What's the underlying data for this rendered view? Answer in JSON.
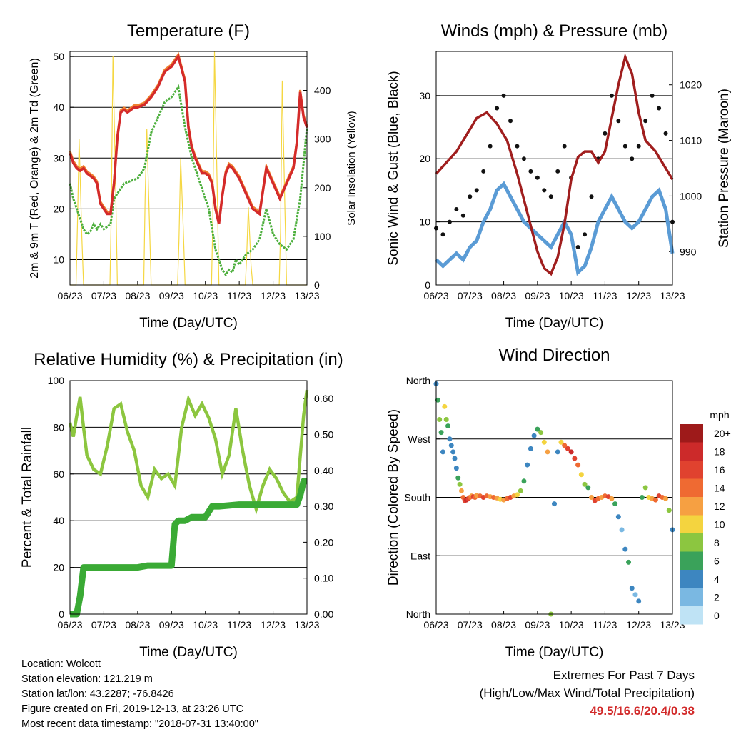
{
  "info": {
    "location": "Location: Wolcott",
    "elevation": "Station elevation: 121.219 m",
    "latlon": "Station lat/lon: 43.2287; -76.8426",
    "created": "Figure created on Fri, 2019-12-13, at 23:26 UTC",
    "recent": "Most recent data timestamp: \"2018-07-31 13:40:00\""
  },
  "extremes": {
    "title": "Extremes For Past 7 Days",
    "subtitle": "(High/Low/Max Wind/Total Precipitation)",
    "values": "49.5/16.6/20.4/0.38"
  },
  "chart_data": [
    {
      "type": "line",
      "title": "Temperature (F)",
      "xlabel": "Time (Day/UTC)",
      "ylabel": "2m & 9m T (Red, Orange) & 2m Td (Green)",
      "y2label": "Solar Insolation (Yellow)",
      "x_ticks": [
        "06/23",
        "07/23",
        "08/23",
        "09/23",
        "10/23",
        "11/23",
        "12/23",
        "13/23"
      ],
      "xlim": [
        0,
        7
      ],
      "ylim": [
        5,
        51
      ],
      "y_ticks": [
        10,
        20,
        30,
        40,
        50
      ],
      "y2lim": [
        0,
        480
      ],
      "y2_ticks": [
        0,
        100,
        200,
        300,
        400
      ],
      "grid": "horizontal",
      "colors": {
        "t2m": "#d42a2a",
        "t9m": "#f08030",
        "td": "#4caf3c",
        "solar": "#f5d742"
      },
      "series": [
        {
          "key": "t2m",
          "x": [
            0,
            0.1,
            0.2,
            0.3,
            0.4,
            0.5,
            0.6,
            0.7,
            0.8,
            0.9,
            1.0,
            1.1,
            1.2,
            1.3,
            1.4,
            1.5,
            1.6,
            1.7,
            1.8,
            1.9,
            2.0,
            2.2,
            2.4,
            2.6,
            2.8,
            3.0,
            3.2,
            3.4,
            3.5,
            3.6,
            3.7,
            3.8,
            3.9,
            4.0,
            4.1,
            4.2,
            4.3,
            4.4,
            4.5,
            4.6,
            4.7,
            4.8,
            4.9,
            5.0,
            5.2,
            5.4,
            5.6,
            5.8,
            6.0,
            6.2,
            6.4,
            6.6,
            6.7,
            6.8,
            6.9,
            7.0
          ],
          "y": [
            31,
            29,
            28,
            27.5,
            28,
            27,
            26.5,
            26,
            25,
            21,
            20,
            19,
            19,
            25,
            34,
            39,
            39.5,
            39,
            39.5,
            40,
            40,
            40.5,
            42,
            44,
            47,
            48,
            50,
            45,
            36,
            32,
            30,
            28.5,
            27,
            27,
            26.5,
            25,
            20,
            17,
            22.5,
            27,
            28.5,
            28,
            27,
            26,
            23,
            20,
            19,
            28,
            25,
            22,
            25,
            28,
            33,
            43,
            38,
            36
          ]
        },
        {
          "key": "td",
          "x": [
            0,
            0.1,
            0.2,
            0.3,
            0.4,
            0.5,
            0.6,
            0.7,
            0.8,
            0.9,
            1.0,
            1.1,
            1.2,
            1.3,
            1.4,
            1.5,
            1.6,
            1.8,
            2.0,
            2.2,
            2.4,
            2.6,
            2.8,
            3.0,
            3.2,
            3.4,
            3.6,
            3.8,
            4.0,
            4.1,
            4.2,
            4.3,
            4.4,
            4.5,
            4.6,
            4.7,
            4.8,
            4.9,
            5.0,
            5.2,
            5.4,
            5.6,
            5.8,
            6.0,
            6.2,
            6.4,
            6.6,
            6.8,
            7.0
          ],
          "y": [
            25,
            22,
            20,
            18,
            16,
            15,
            15.5,
            17,
            16,
            17,
            16,
            16.5,
            17,
            22,
            23,
            24,
            25,
            25.5,
            26,
            28,
            35,
            38,
            41,
            42,
            44,
            36,
            30,
            26,
            22,
            20,
            16,
            12,
            10,
            8,
            7,
            8,
            7.5,
            10,
            9,
            11,
            12,
            14,
            20,
            15,
            13,
            12,
            14,
            22,
            36
          ]
        },
        {
          "key": "solar",
          "x": [
            0,
            0.18,
            0.22,
            0.27,
            0.35,
            0.4,
            1.18,
            1.22,
            1.27,
            1.35,
            1.4,
            2.18,
            2.22,
            2.27,
            2.35,
            2.4,
            3.18,
            3.22,
            3.27,
            3.35,
            3.4,
            4.18,
            4.22,
            4.27,
            4.35,
            4.4,
            5.18,
            5.22,
            5.27,
            5.35,
            5.4,
            6.18,
            6.22,
            6.27,
            6.35,
            6.4,
            7.0
          ],
          "y": [
            0,
            0,
            120,
            300,
            100,
            0,
            0,
            150,
            470,
            200,
            0,
            0,
            180,
            320,
            120,
            0,
            0,
            90,
            260,
            110,
            0,
            0,
            130,
            480,
            200,
            0,
            0,
            60,
            160,
            40,
            0,
            0,
            110,
            420,
            150,
            0,
            0
          ]
        }
      ]
    },
    {
      "type": "line",
      "title": "Winds (mph) & Pressure (mb)",
      "xlabel": "Time (Day/UTC)",
      "ylabel": "Sonic Wind & Gust (Blue, Black)",
      "y2label": "Station Pressure (Maroon)",
      "x_ticks": [
        "06/23",
        "07/23",
        "08/23",
        "09/23",
        "10/23",
        "11/23",
        "12/23",
        "13/23"
      ],
      "xlim": [
        0,
        7
      ],
      "ylim": [
        0,
        37
      ],
      "y_ticks": [
        0,
        10,
        20,
        30
      ],
      "y2lim": [
        984,
        1026
      ],
      "y2_ticks": [
        990,
        1000,
        1010,
        1020
      ],
      "grid": "horizontal",
      "colors": {
        "wind": "#5a9bd5",
        "gust": "#111111",
        "pressure": "#a01e1e"
      },
      "series": [
        {
          "key": "wind",
          "x": [
            0,
            0.2,
            0.4,
            0.6,
            0.8,
            1.0,
            1.2,
            1.4,
            1.6,
            1.8,
            2.0,
            2.2,
            2.4,
            2.6,
            2.8,
            3.0,
            3.2,
            3.4,
            3.6,
            3.8,
            4.0,
            4.2,
            4.4,
            4.6,
            4.8,
            5.0,
            5.2,
            5.4,
            5.6,
            5.8,
            6.0,
            6.2,
            6.4,
            6.6,
            6.8,
            7.0
          ],
          "y": [
            4,
            3,
            4,
            5,
            4,
            6,
            7,
            10,
            12,
            15,
            16,
            14,
            12,
            10,
            9,
            8,
            7,
            6,
            8,
            10,
            8,
            2,
            3,
            6,
            10,
            12,
            14,
            12,
            10,
            9,
            10,
            12,
            14,
            15,
            12,
            5
          ]
        },
        {
          "key": "gust",
          "x": [
            0,
            0.2,
            0.4,
            0.6,
            0.8,
            1.0,
            1.2,
            1.4,
            1.6,
            1.8,
            2.0,
            2.2,
            2.4,
            2.6,
            2.8,
            3.0,
            3.2,
            3.4,
            3.6,
            3.8,
            4.0,
            4.2,
            4.4,
            4.6,
            4.8,
            5.0,
            5.2,
            5.4,
            5.6,
            5.8,
            6.0,
            6.2,
            6.4,
            6.6,
            6.8,
            7.0
          ],
          "y": [
            9,
            8,
            10,
            12,
            11,
            14,
            15,
            18,
            22,
            28,
            30,
            26,
            22,
            20,
            18,
            17,
            15,
            14,
            18,
            22,
            17,
            6,
            8,
            14,
            20,
            24,
            30,
            26,
            22,
            20,
            22,
            26,
            30,
            28,
            24,
            10
          ]
        },
        {
          "key": "pressure",
          "x": [
            0,
            0.3,
            0.6,
            0.9,
            1.2,
            1.5,
            1.8,
            2.1,
            2.4,
            2.7,
            3.0,
            3.2,
            3.4,
            3.6,
            3.8,
            4.0,
            4.2,
            4.4,
            4.6,
            4.8,
            5.0,
            5.2,
            5.4,
            5.6,
            5.8,
            6.0,
            6.2,
            6.5,
            6.8,
            7.0
          ],
          "y": [
            1004,
            1006,
            1008,
            1011,
            1014,
            1015,
            1013,
            1010,
            1004,
            997,
            990,
            987,
            986,
            989,
            995,
            1003,
            1007,
            1008,
            1008,
            1006,
            1008,
            1014,
            1020,
            1025,
            1022,
            1015,
            1010,
            1008,
            1005,
            1003
          ]
        }
      ]
    },
    {
      "type": "line",
      "title": "Relative Humidity (%) & Precipitation (in)",
      "xlabel": "Time (Day/UTC)",
      "ylabel": "Percent & Total Rainfall",
      "x_ticks": [
        "06/23",
        "07/23",
        "08/23",
        "09/23",
        "10/23",
        "11/23",
        "12/23",
        "13/23"
      ],
      "xlim": [
        0,
        7
      ],
      "ylim": [
        0,
        100
      ],
      "y_ticks": [
        0,
        20,
        40,
        60,
        80,
        100
      ],
      "y2lim": [
        0,
        0.65
      ],
      "y2_ticks": [
        "0.00",
        "0.10",
        "0.20",
        "0.30",
        "0.40",
        "0.50",
        "0.60"
      ],
      "grid": "horizontal",
      "colors": {
        "rh": "#8cc63f",
        "precip": "#3aaa35"
      },
      "series": [
        {
          "key": "rh",
          "x": [
            0,
            0.1,
            0.2,
            0.3,
            0.4,
            0.5,
            0.7,
            0.9,
            1.1,
            1.3,
            1.5,
            1.7,
            1.9,
            2.1,
            2.3,
            2.5,
            2.7,
            2.9,
            3.1,
            3.3,
            3.5,
            3.7,
            3.9,
            4.1,
            4.3,
            4.5,
            4.7,
            4.9,
            5.1,
            5.3,
            5.5,
            5.7,
            5.9,
            6.1,
            6.3,
            6.5,
            6.7,
            6.9,
            7.0
          ],
          "y": [
            82,
            76,
            85,
            93,
            80,
            68,
            62,
            60,
            72,
            88,
            90,
            78,
            70,
            55,
            50,
            62,
            58,
            60,
            55,
            80,
            92,
            85,
            90,
            84,
            75,
            60,
            68,
            88,
            70,
            55,
            45,
            55,
            62,
            58,
            52,
            48,
            50,
            85,
            96
          ]
        },
        {
          "key": "precip",
          "x": [
            0,
            0.2,
            0.3,
            0.4,
            0.6,
            1.0,
            1.5,
            2.0,
            2.3,
            2.5,
            2.8,
            3.0,
            3.1,
            3.2,
            3.4,
            3.6,
            3.8,
            4.0,
            4.2,
            4.4,
            5.0,
            5.5,
            6.0,
            6.5,
            6.7,
            6.8,
            6.9,
            7.0
          ],
          "y": [
            0,
            0,
            0.05,
            0.13,
            0.13,
            0.13,
            0.13,
            0.13,
            0.135,
            0.135,
            0.135,
            0.135,
            0.25,
            0.26,
            0.26,
            0.27,
            0.27,
            0.27,
            0.3,
            0.3,
            0.305,
            0.305,
            0.305,
            0.305,
            0.305,
            0.33,
            0.37,
            0.37
          ]
        }
      ]
    },
    {
      "type": "scatter",
      "title": "Wind Direction",
      "xlabel": "Time (Day/UTC)",
      "ylabel": "Direction (Colored By Speed)",
      "x_ticks": [
        "06/23",
        "07/23",
        "08/23",
        "09/23",
        "10/23",
        "11/23",
        "12/23",
        "13/23"
      ],
      "xlim": [
        0,
        7
      ],
      "ylim": [
        0,
        360
      ],
      "y_ticks": [
        {
          "value": 0,
          "label": "North"
        },
        {
          "value": 90,
          "label": "East"
        },
        {
          "value": 180,
          "label": "South"
        },
        {
          "value": 270,
          "label": "West"
        },
        {
          "value": 360,
          "label": "North"
        }
      ],
      "grid": "horizontal",
      "legend": {
        "title": "mph",
        "labels": [
          "20+",
          "18",
          "16",
          "14",
          "12",
          "10",
          "8",
          "6",
          "4",
          "2",
          "0"
        ],
        "colors": [
          "#9e1a1a",
          "#cc2a2a",
          "#e0422f",
          "#ef6a32",
          "#f6a042",
          "#f4d43f",
          "#8cc640",
          "#3aa25a",
          "#3d86c0",
          "#7ab8e2",
          "#bfe3f5"
        ]
      },
      "x": [
        0,
        0.05,
        0.1,
        0.15,
        0.2,
        0.25,
        0.3,
        0.35,
        0.4,
        0.45,
        0.5,
        0.55,
        0.6,
        0.65,
        0.7,
        0.75,
        0.8,
        0.85,
        0.9,
        0.95,
        1.0,
        1.05,
        1.1,
        1.15,
        1.2,
        1.3,
        1.4,
        1.5,
        1.6,
        1.7,
        1.8,
        1.9,
        2.0,
        2.1,
        2.2,
        2.3,
        2.4,
        2.5,
        2.6,
        2.7,
        2.8,
        2.9,
        3.0,
        3.1,
        3.2,
        3.3,
        3.4,
        3.5,
        3.6,
        3.7,
        3.8,
        3.9,
        4.0,
        4.1,
        4.2,
        4.3,
        4.4,
        4.5,
        4.6,
        4.7,
        4.8,
        4.9,
        5.0,
        5.1,
        5.2,
        5.3,
        5.4,
        5.5,
        5.6,
        5.7,
        5.8,
        5.9,
        6.0,
        6.1,
        6.2,
        6.3,
        6.4,
        6.5,
        6.6,
        6.7,
        6.8,
        6.9,
        7.0
      ],
      "y": [
        355,
        330,
        300,
        280,
        250,
        320,
        300,
        290,
        270,
        260,
        250,
        240,
        225,
        210,
        200,
        190,
        180,
        175,
        176,
        178,
        180,
        182,
        181,
        180,
        183,
        182,
        180,
        182,
        181,
        180,
        179,
        177,
        176,
        178,
        180,
        182,
        184,
        190,
        205,
        230,
        255,
        275,
        285,
        280,
        265,
        250,
        0,
        170,
        250,
        265,
        260,
        255,
        250,
        240,
        230,
        215,
        200,
        195,
        180,
        175,
        178,
        180,
        182,
        181,
        178,
        170,
        150,
        130,
        100,
        80,
        40,
        30,
        20,
        180,
        195,
        180,
        178,
        176,
        182,
        180,
        178,
        160,
        130
      ],
      "speed": [
        4,
        6,
        8,
        6,
        3,
        10,
        8,
        6,
        4,
        3,
        4,
        4,
        4,
        6,
        8,
        12,
        14,
        16,
        18,
        16,
        14,
        12,
        16,
        14,
        12,
        14,
        16,
        14,
        12,
        14,
        12,
        10,
        12,
        14,
        16,
        12,
        10,
        8,
        6,
        4,
        4,
        4,
        6,
        8,
        10,
        12,
        8,
        4,
        4,
        10,
        14,
        16,
        18,
        16,
        14,
        10,
        8,
        6,
        12,
        16,
        14,
        12,
        14,
        16,
        12,
        6,
        4,
        2,
        4,
        6,
        4,
        2,
        3,
        6,
        8,
        10,
        12,
        14,
        16,
        14,
        12,
        8,
        4
      ]
    }
  ]
}
